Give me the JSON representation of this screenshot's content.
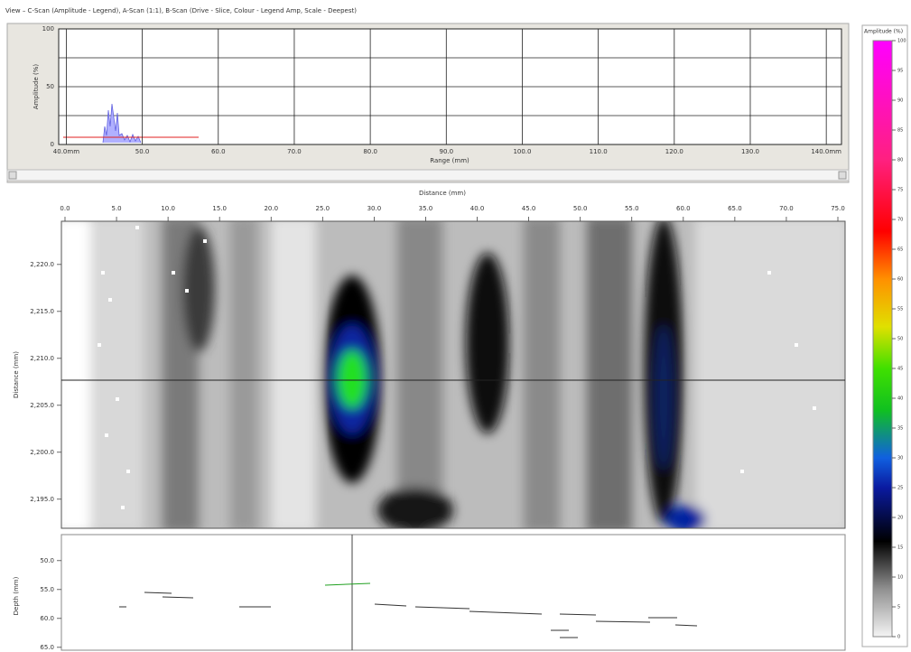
{
  "header": {
    "title": "View – C-Scan (Amplitude - Legend),  A-Scan (1:1),  B-Scan (Drive - Slice, Colour - Legend Amp, Scale - Deepest)"
  },
  "a_scan": {
    "y_label": "Amplitude (%)",
    "x_label": "Range (mm)",
    "ylim": [
      0,
      100
    ],
    "yticks": [
      0,
      50,
      100
    ],
    "xlim": [
      39,
      142
    ],
    "xticks": [
      {
        "value": 40,
        "label": "40.0mm"
      },
      {
        "value": 50,
        "label": "50.0"
      },
      {
        "value": 60,
        "label": "60.0"
      },
      {
        "value": 70,
        "label": "70.0"
      },
      {
        "value": 80,
        "label": "80.0"
      },
      {
        "value": 90,
        "label": "90.0"
      },
      {
        "value": 100,
        "label": "100.0"
      },
      {
        "value": 110,
        "label": "110.0"
      },
      {
        "value": 120,
        "label": "120.0"
      },
      {
        "value": 130,
        "label": "130.0"
      },
      {
        "value": 140,
        "label": "140.0mm"
      }
    ]
  },
  "c_scan": {
    "x_label": "Distance (mm)",
    "y_label": "Distance (mm)",
    "xlim": [
      -0.35,
      75.7
    ],
    "xticks": [
      {
        "value": 0,
        "label": "0.0"
      },
      {
        "value": 5,
        "label": "5.0"
      },
      {
        "value": 10,
        "label": "10.0"
      },
      {
        "value": 15,
        "label": "15.0"
      },
      {
        "value": 20,
        "label": "20.0"
      },
      {
        "value": 25,
        "label": "25.0"
      },
      {
        "value": 30,
        "label": "30.0"
      },
      {
        "value": 35,
        "label": "35.0"
      },
      {
        "value": 40,
        "label": "40.0"
      },
      {
        "value": 45,
        "label": "45.0"
      },
      {
        "value": 50,
        "label": "50.0"
      },
      {
        "value": 55,
        "label": "55.0"
      },
      {
        "value": 60,
        "label": "60.0"
      },
      {
        "value": 65,
        "label": "65.0"
      },
      {
        "value": 70,
        "label": "70.0"
      },
      {
        "value": 75,
        "label": "75.0"
      }
    ],
    "ylim": [
      2191.9,
      2224.6
    ],
    "yticks": [
      {
        "value": 2195,
        "label": "2,195.0"
      },
      {
        "value": 2200,
        "label": "2,200.0"
      },
      {
        "value": 2205,
        "label": "2,205.0"
      },
      {
        "value": 2210,
        "label": "2,210.0"
      },
      {
        "value": 2215,
        "label": "2,215.0"
      },
      {
        "value": 2220,
        "label": "2,220.0"
      }
    ]
  },
  "b_scan": {
    "y_label": "Depth (mm)",
    "ylim": [
      45.5,
      65.5
    ],
    "yticks": [
      {
        "value": 50,
        "label": "50.0"
      },
      {
        "value": 55,
        "label": "55.0"
      },
      {
        "value": 60,
        "label": "60.0"
      },
      {
        "value": 65,
        "label": "65.0"
      }
    ]
  },
  "legend": {
    "title": "Amplitude (%)",
    "ylim": [
      0,
      100
    ],
    "yticks": [
      0,
      5,
      10,
      15,
      20,
      25,
      30,
      35,
      40,
      45,
      50,
      55,
      60,
      65,
      70,
      75,
      80,
      85,
      90,
      95,
      100
    ]
  }
}
